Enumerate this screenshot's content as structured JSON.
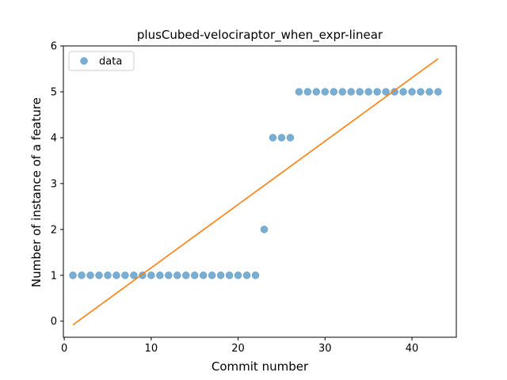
{
  "chart_data": {
    "type": "scatter",
    "title": "plusCubed-velociraptor_when_expr-linear",
    "xlabel": "Commit number",
    "ylabel": "Number of instance of a feature",
    "xlim": [
      -0.1,
      45.1
    ],
    "ylim": [
      -0.35,
      6.0
    ],
    "xticks": [
      0,
      10,
      20,
      30,
      40
    ],
    "yticks": [
      0,
      1,
      2,
      3,
      4,
      5,
      6
    ],
    "grid": false,
    "legend_position": "top-left",
    "series": [
      {
        "name": "data",
        "kind": "scatter",
        "color": "#1f77b4",
        "x": [
          1,
          2,
          3,
          4,
          5,
          6,
          7,
          8,
          9,
          10,
          11,
          12,
          13,
          14,
          15,
          16,
          17,
          18,
          19,
          20,
          21,
          22,
          23,
          24,
          25,
          26,
          27,
          28,
          29,
          30,
          31,
          32,
          33,
          34,
          35,
          36,
          37,
          38,
          39,
          40,
          41,
          42,
          43
        ],
        "y": [
          1,
          1,
          1,
          1,
          1,
          1,
          1,
          1,
          1,
          1,
          1,
          1,
          1,
          1,
          1,
          1,
          1,
          1,
          1,
          1,
          1,
          1,
          2,
          4,
          4,
          4,
          5,
          5,
          5,
          5,
          5,
          5,
          5,
          5,
          5,
          5,
          5,
          5,
          5,
          5,
          5,
          5,
          5
        ]
      },
      {
        "kind": "line",
        "color": "#ff7f0e",
        "x": [
          1,
          43
        ],
        "y": [
          -0.08,
          5.72
        ]
      }
    ]
  }
}
